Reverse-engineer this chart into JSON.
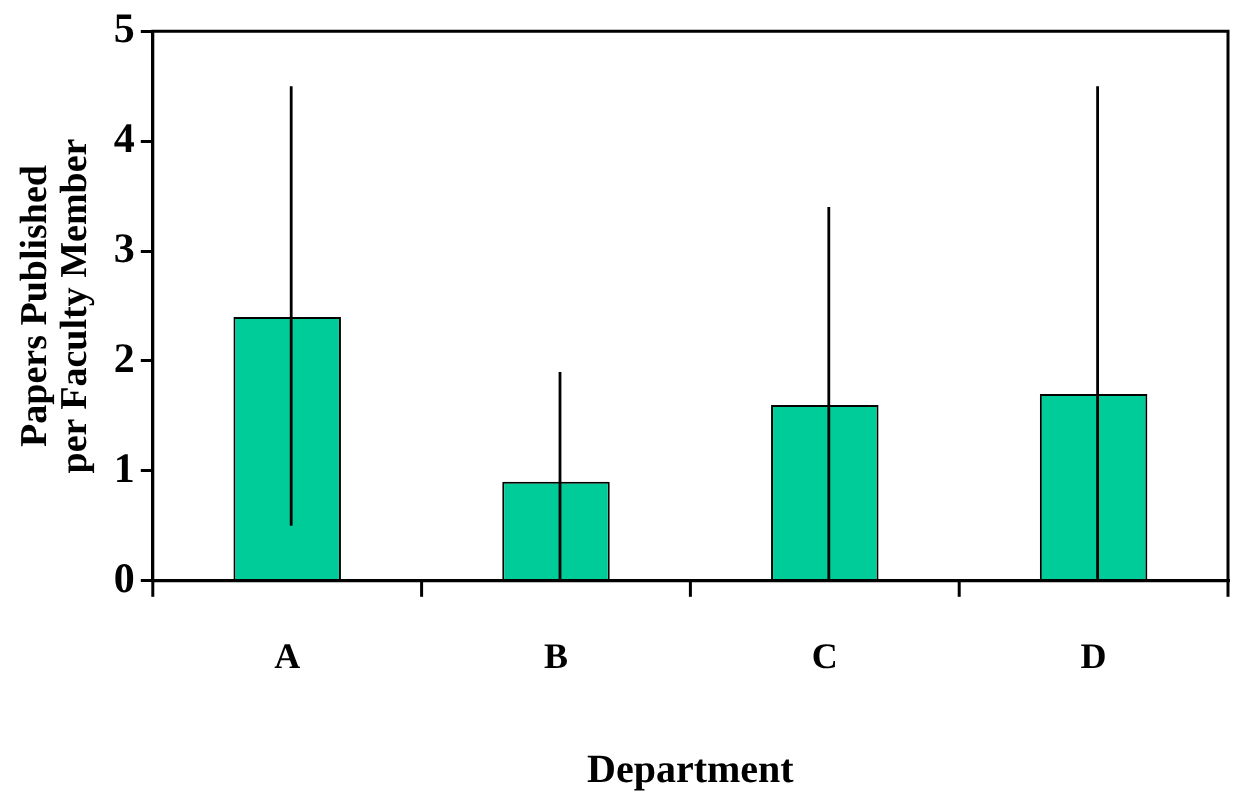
{
  "chart_data": {
    "type": "bar",
    "xlabel": "Department",
    "ylabel": "Papers Published\nper Faculty Member",
    "categories": [
      "A",
      "B",
      "C",
      "D"
    ],
    "values": [
      2.4,
      0.9,
      1.6,
      1.7
    ],
    "errors": [
      [
        0.5,
        4.5
      ],
      [
        0,
        1.9
      ],
      [
        0,
        3.4
      ],
      [
        0,
        4.5
      ]
    ],
    "color": "#00cc99",
    "ylim": [
      0,
      5
    ],
    "yticks": [
      0,
      1,
      2,
      3,
      4,
      5
    ],
    "grid": false,
    "legend": false
  }
}
